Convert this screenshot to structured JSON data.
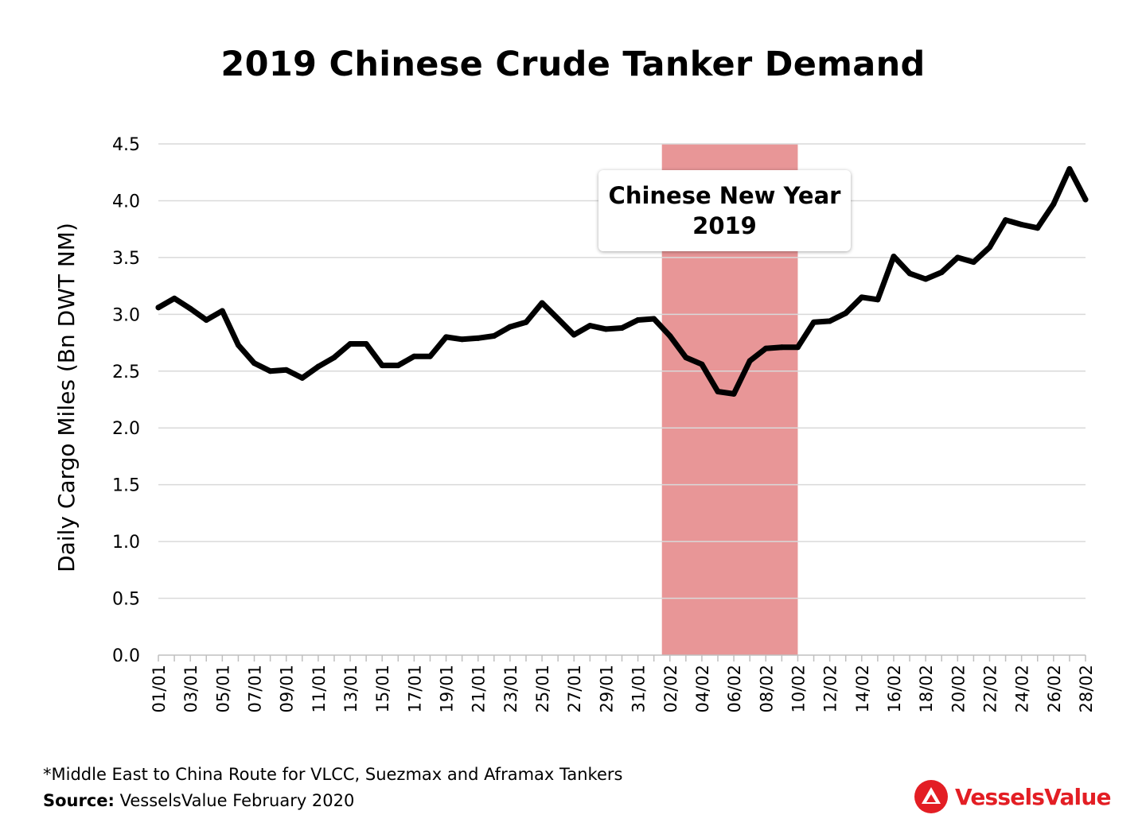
{
  "chart_data": {
    "type": "line",
    "title": "2019 Chinese Crude Tanker Demand",
    "ylabel": "Daily Cargo Miles (Bn DWT NM)",
    "xlabel": "",
    "ylim": [
      0,
      4.5
    ],
    "yticks": [
      "0.0",
      "0.5",
      "1.0",
      "1.5",
      "2.0",
      "2.5",
      "3.0",
      "3.5",
      "4.0",
      "4.5"
    ],
    "grid": true,
    "x": [
      "01/01",
      "02/01",
      "03/01",
      "04/01",
      "05/01",
      "06/01",
      "07/01",
      "08/01",
      "09/01",
      "10/01",
      "11/01",
      "12/01",
      "13/01",
      "14/01",
      "15/01",
      "16/01",
      "17/01",
      "18/01",
      "19/01",
      "20/01",
      "21/01",
      "22/01",
      "23/01",
      "24/01",
      "25/01",
      "26/01",
      "27/01",
      "28/01",
      "29/01",
      "30/01",
      "31/01",
      "01/02",
      "02/02",
      "03/02",
      "04/02",
      "05/02",
      "06/02",
      "07/02",
      "08/02",
      "09/02",
      "10/02",
      "11/02",
      "12/02",
      "13/02",
      "14/02",
      "15/02",
      "16/02",
      "17/02",
      "18/02",
      "19/02",
      "20/02",
      "21/02",
      "22/02",
      "23/02",
      "24/02",
      "25/02",
      "26/02",
      "27/02",
      "28/02"
    ],
    "x_tick_labels": [
      "01/01",
      "03/01",
      "05/01",
      "07/01",
      "09/01",
      "11/01",
      "13/01",
      "15/01",
      "17/01",
      "19/01",
      "21/01",
      "23/01",
      "25/01",
      "27/01",
      "29/01",
      "31/01",
      "02/02",
      "04/02",
      "06/02",
      "08/02",
      "10/02",
      "12/02",
      "14/02",
      "16/02",
      "18/02",
      "20/02",
      "22/02",
      "24/02",
      "26/02",
      "28/02"
    ],
    "series": [
      {
        "values": [
          3.06,
          3.14,
          3.05,
          2.95,
          3.03,
          2.73,
          2.57,
          2.5,
          2.51,
          2.44,
          2.54,
          2.62,
          2.74,
          2.74,
          2.55,
          2.55,
          2.63,
          2.63,
          2.8,
          2.78,
          2.79,
          2.81,
          2.89,
          2.93,
          3.1,
          2.96,
          2.82,
          2.9,
          2.87,
          2.88,
          2.95,
          2.96,
          2.81,
          2.62,
          2.56,
          2.32,
          2.3,
          2.59,
          2.7,
          2.71,
          2.71,
          2.93,
          2.94,
          3.01,
          3.15,
          3.13,
          3.51,
          3.36,
          3.31,
          3.37,
          3.5,
          3.46,
          3.59,
          3.83,
          3.79,
          3.76,
          3.97,
          4.28,
          4.01
        ],
        "color": "#000000"
      }
    ],
    "highlight": {
      "label_line1": "Chinese New Year",
      "label_line2": "2019",
      "start": "02/02",
      "end": "10/02",
      "color": "#e58b8c"
    }
  },
  "footnote": "*Middle East to China Route for VLCC, Suezmax and Aframax Tankers",
  "source_label": "Source:",
  "source_text": " VesselsValue February 2020",
  "brand": {
    "name": "VesselsValue",
    "icon": "vesselsvalue-logo-icon",
    "color": "#e31e24"
  }
}
